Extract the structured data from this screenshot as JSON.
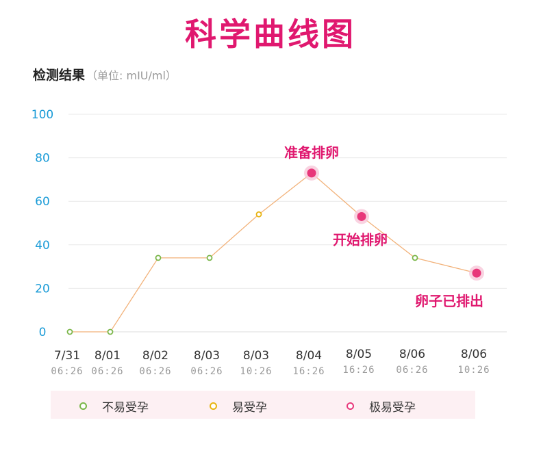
{
  "header": {
    "title": "科学曲线图",
    "subtitle": "检测结果",
    "unit": "（单位: mIU/ml）"
  },
  "colors": {
    "accent": "#e0186f",
    "low": "#7ab648",
    "medium": "#e8b410",
    "high": "#e8377a",
    "line": "#f2b27a",
    "axis_label": "#1a9bd7"
  },
  "chart_data": {
    "type": "line",
    "title": "科学曲线图",
    "ylabel": "检测结果（单位: mIU/ml）",
    "ylim": [
      0,
      100
    ],
    "yticks": [
      0,
      20,
      40,
      60,
      80,
      100
    ],
    "grid": true,
    "points": [
      {
        "date": "7/31",
        "time": "06:26",
        "value": 0,
        "level": "low"
      },
      {
        "date": "8/01",
        "time": "06:26",
        "value": 0,
        "level": "low"
      },
      {
        "date": "8/02",
        "time": "06:26",
        "value": 34,
        "level": "low"
      },
      {
        "date": "8/03",
        "time": "06:26",
        "value": 34,
        "level": "low"
      },
      {
        "date": "8/03",
        "time": "10:26",
        "value": 54,
        "level": "medium"
      },
      {
        "date": "8/04",
        "time": "16:26",
        "value": 73,
        "level": "high",
        "annotation": "准备排卵"
      },
      {
        "date": "8/05",
        "time": "16:26",
        "value": 53,
        "level": "high",
        "annotation": "开始排卵"
      },
      {
        "date": "8/06",
        "time": "06:26",
        "value": 34,
        "level": "low"
      },
      {
        "date": "8/06",
        "time": "10:26",
        "value": 27,
        "level": "high",
        "annotation": "卵子已排出"
      }
    ]
  },
  "legend": [
    {
      "label": "不易受孕",
      "level": "low"
    },
    {
      "label": "易受孕",
      "level": "medium"
    },
    {
      "label": "极易受孕",
      "level": "high"
    }
  ]
}
